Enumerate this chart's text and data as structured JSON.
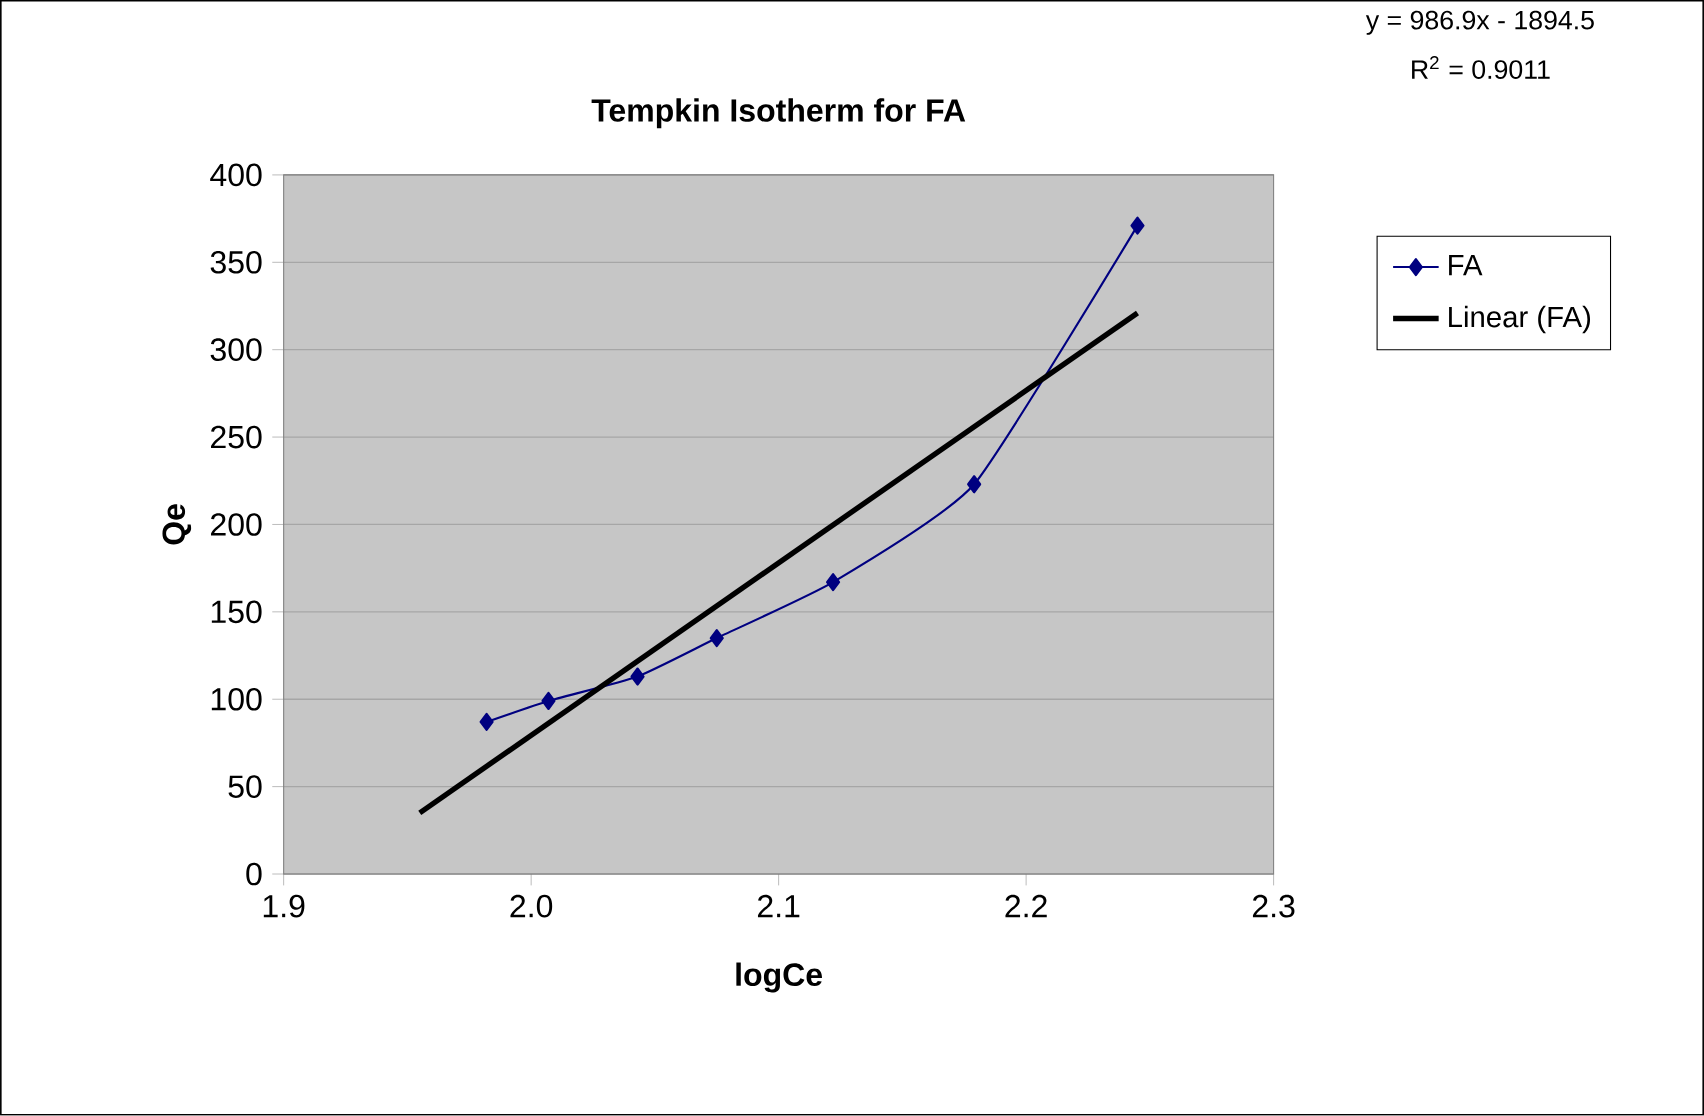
{
  "chart_data": {
    "type": "line",
    "title": "Tempkin Isotherm for FA",
    "xlabel": "logCe",
    "ylabel": "Qe",
    "annotations": [
      "y = 986.9x - 1894.5",
      "R$^{2}$ = 0.9011"
    ],
    "series": [
      {
        "name": "FA",
        "color": "#000080",
        "x": [
          1.982,
          2.007,
          2.043,
          2.075,
          2.122,
          2.179,
          2.245
        ],
        "values": [
          87,
          99,
          113,
          135,
          167,
          223,
          371
        ],
        "marker": "diamond"
      },
      {
        "name": "Linear (FA)",
        "color": "#000000",
        "x": [
          1.955,
          2.245
        ],
        "values": [
          35,
          321
        ],
        "marker": "none"
      }
    ],
    "xlim": [
      1.9,
      2.3
    ],
    "ylim": [
      0,
      400
    ],
    "xticks": [
      1.9,
      {
        "value": 2.0,
        "label": "2.0"
      },
      2.1,
      2.2,
      2.3
    ],
    "yticks": [
      0,
      50,
      100,
      150,
      200,
      250,
      300,
      350,
      400
    ],
    "grid": "y",
    "legend": "right"
  }
}
